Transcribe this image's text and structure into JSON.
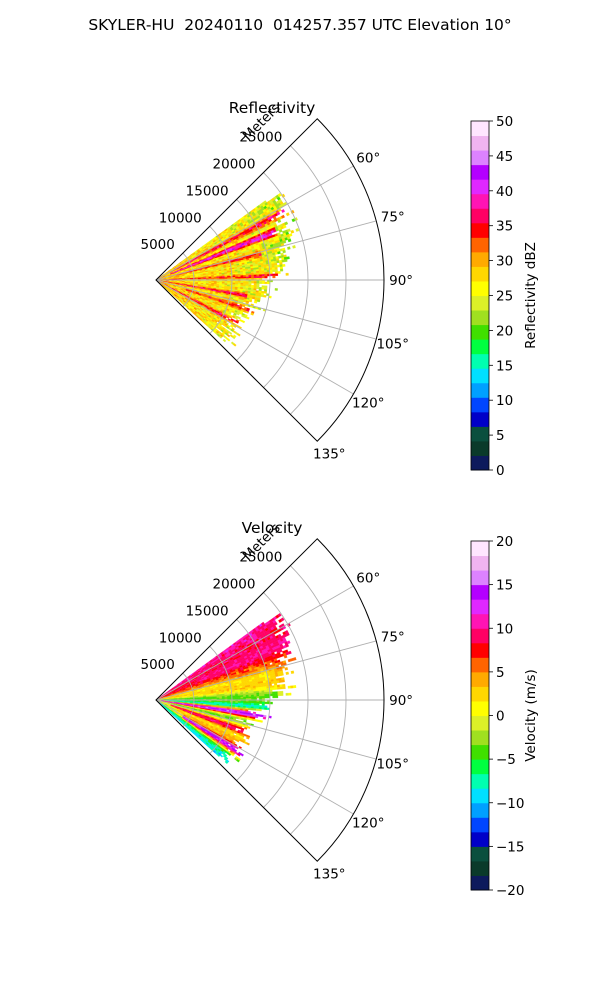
{
  "figure": {
    "suptitle": "SKYLER-HU  20240110  014257.357 UTC Elevation 10°"
  },
  "chart_data": [
    {
      "type": "polar-sector",
      "title": "Reflectivity",
      "radial_label": "Meters",
      "radial_ticks": [
        5000,
        10000,
        15000,
        20000,
        25000
      ],
      "radial_tick_labels": [
        "5000",
        "10000",
        "15000",
        "20000",
        "25000"
      ],
      "rlim": [
        0,
        30000
      ],
      "theta_range_deg": [
        45,
        135
      ],
      "theta_ticks_deg": [
        60,
        75,
        90,
        105,
        120,
        135
      ],
      "theta_tick_labels": [
        "60°",
        "75°",
        "90°",
        "105°",
        "120°",
        "135°"
      ],
      "grid": true,
      "colorbar": {
        "label": "Reflectivity dBZ",
        "range": [
          0,
          50
        ],
        "ticks": [
          0,
          5,
          10,
          15,
          20,
          25,
          30,
          35,
          40,
          45,
          50
        ],
        "tick_labels": [
          "0",
          "5",
          "10",
          "15",
          "20",
          "25",
          "30",
          "35",
          "40",
          "45",
          "50"
        ],
        "colormap": [
          "#0d1a5c",
          "#0a3a2a",
          "#0a4f3e",
          "#0000c8",
          "#0046ff",
          "#00a0ff",
          "#00e0ff",
          "#00ffb0",
          "#00ff40",
          "#40e000",
          "#a0e020",
          "#dcf028",
          "#ffff00",
          "#ffd700",
          "#ffaa00",
          "#ff6400",
          "#ff0000",
          "#ff0064",
          "#ff14b4",
          "#e028ff",
          "#b400ff",
          "#dc82ff",
          "#f0b4f0",
          "#ffe6ff"
        ]
      },
      "features": [
        {
          "theta_deg": 62,
          "r_range_m": [
            0,
            20000
          ],
          "value": 36
        },
        {
          "theta_deg": 68,
          "r_range_m": [
            2000,
            17000
          ],
          "value": 40
        },
        {
          "theta_deg": 76,
          "r_range_m": [
            0,
            14000
          ],
          "value": 35
        },
        {
          "theta_deg": 88,
          "r_range_m": [
            0,
            16000
          ],
          "value": 34
        },
        {
          "theta_deg": 100,
          "r_range_m": [
            0,
            12000
          ],
          "value": 36
        },
        {
          "theta_deg": 108,
          "r_range_m": [
            4000,
            17000
          ],
          "value": 35
        },
        {
          "theta_deg": 118,
          "r_range_m": [
            0,
            14000
          ],
          "value": 36
        }
      ]
    },
    {
      "type": "polar-sector",
      "title": "Velocity",
      "radial_label": "Meters",
      "radial_ticks": [
        5000,
        10000,
        15000,
        20000,
        25000
      ],
      "radial_tick_labels": [
        "5000",
        "10000",
        "15000",
        "20000",
        "25000"
      ],
      "rlim": [
        0,
        30000
      ],
      "theta_range_deg": [
        45,
        135
      ],
      "theta_ticks_deg": [
        60,
        75,
        90,
        105,
        120,
        135
      ],
      "theta_tick_labels": [
        "60°",
        "75°",
        "90°",
        "105°",
        "120°",
        "135°"
      ],
      "grid": true,
      "colorbar": {
        "label": "Velocity (m/s)",
        "range": [
          -20,
          20
        ],
        "ticks": [
          -20,
          -15,
          -10,
          -5,
          0,
          5,
          10,
          15,
          20
        ],
        "tick_labels": [
          "−20",
          "−15",
          "−10",
          "−5",
          "0",
          "5",
          "10",
          "15",
          "20"
        ],
        "colormap": [
          "#0d1a5c",
          "#0a3a2a",
          "#0a4f3e",
          "#0000c8",
          "#0046ff",
          "#00a0ff",
          "#00e0ff",
          "#00ffb0",
          "#00ff40",
          "#40e000",
          "#a0e020",
          "#dcf028",
          "#ffff00",
          "#ffd700",
          "#ffaa00",
          "#ff6400",
          "#ff0000",
          "#ff0064",
          "#ff14b4",
          "#e028ff",
          "#b400ff",
          "#dc82ff",
          "#f0b4f0",
          "#ffe6ff"
        ]
      },
      "features": [
        {
          "theta_deg": 66,
          "r_range_m": [
            6000,
            20000
          ],
          "value": 10
        },
        {
          "theta_deg": 78,
          "r_range_m": [
            0,
            16000
          ],
          "value": 2
        },
        {
          "theta_deg": 88,
          "r_range_m": [
            0,
            16000
          ],
          "value": -4
        },
        {
          "theta_deg": 95,
          "r_range_m": [
            0,
            16000
          ],
          "value": -12
        },
        {
          "theta_deg": 99,
          "r_range_m": [
            0,
            16000
          ],
          "value": 16
        },
        {
          "theta_deg": 104,
          "r_range_m": [
            2000,
            16000
          ],
          "value": -4
        },
        {
          "theta_deg": 110,
          "r_range_m": [
            2000,
            15000
          ],
          "value": 10
        },
        {
          "theta_deg": 116,
          "r_range_m": [
            3000,
            14000
          ],
          "value": 3
        },
        {
          "theta_deg": 122,
          "r_range_m": [
            4000,
            14000
          ],
          "value": 14
        }
      ]
    }
  ]
}
